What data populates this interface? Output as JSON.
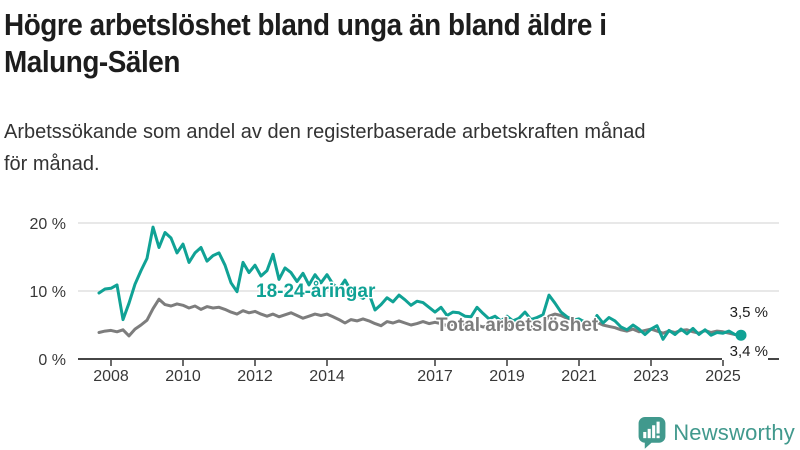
{
  "header": {
    "title": "Högre arbetslöshet bland unga än bland äldre i\nMalung-Sälen",
    "subtitle": "Arbetssökande som andel av den registerbaserade arbetskraften månad\nför månad."
  },
  "chart_data": {
    "type": "line",
    "unit": "%",
    "grid": "horizontal-light",
    "legend_position": "inline-labels",
    "x_start": 2007.6667,
    "x_step": 0.16667,
    "x_ticks": [
      2008,
      2010,
      2012,
      2014,
      2017,
      2019,
      2021,
      2023,
      2025
    ],
    "y_ticks": [
      0,
      10,
      20
    ],
    "y_tick_labels": [
      "0 %",
      "10 %",
      "20 %"
    ],
    "ylim": [
      0,
      21
    ],
    "xlim": [
      2007.5,
      2026.5
    ],
    "series": [
      {
        "name": "Total arbetslöshet",
        "label": "Total arbetslöshet",
        "color": "#7d7d7d",
        "end_label": "3,4 %",
        "end_value": 3.4,
        "end_dot": false,
        "values": [
          3.9,
          4.1,
          4.2,
          4.0,
          4.3,
          3.4,
          4.4,
          5.0,
          5.7,
          7.4,
          8.8,
          8.0,
          7.8,
          8.1,
          7.9,
          7.5,
          7.8,
          7.3,
          7.7,
          7.5,
          7.6,
          7.3,
          6.9,
          6.6,
          7.1,
          6.8,
          7.0,
          6.6,
          6.3,
          6.6,
          6.2,
          6.5,
          6.8,
          6.4,
          6.0,
          6.3,
          6.6,
          6.4,
          6.6,
          6.2,
          5.8,
          5.3,
          5.8,
          5.6,
          5.9,
          5.6,
          5.2,
          4.9,
          5.5,
          5.3,
          5.6,
          5.3,
          5.0,
          5.2,
          5.5,
          5.2,
          5.4,
          5.2,
          4.9,
          5.1,
          5.3,
          5.0,
          5.2,
          5.0,
          4.7,
          4.9,
          5.1,
          4.8,
          5.0,
          4.8,
          4.6,
          4.9,
          4.7,
          4.9,
          5.1,
          6.3,
          6.6,
          6.4,
          6.0,
          5.8,
          5.7,
          5.5,
          5.2,
          5.4,
          5.0,
          4.8,
          4.6,
          4.3,
          4.1,
          4.4,
          4.0,
          4.2,
          4.4,
          4.1,
          3.8,
          4.1,
          3.9,
          4.2,
          4.3,
          4.0,
          3.8,
          4.2,
          3.9,
          4.1,
          4.0,
          3.8,
          3.6,
          3.4
        ]
      },
      {
        "name": "18-24-åringar",
        "label": "18-24-åringar",
        "color": "#10a295",
        "end_label": "3,5 %",
        "end_value": 3.5,
        "end_dot": true,
        "values": [
          9.7,
          10.3,
          10.4,
          10.9,
          5.8,
          8.2,
          11.0,
          13.0,
          14.8,
          19.4,
          16.4,
          18.6,
          17.8,
          15.6,
          16.9,
          14.2,
          15.6,
          16.4,
          14.4,
          15.2,
          15.6,
          13.8,
          11.2,
          9.9,
          14.2,
          12.7,
          13.8,
          12.2,
          13.0,
          15.4,
          11.7,
          13.4,
          12.7,
          11.4,
          12.6,
          10.9,
          12.4,
          11.2,
          12.4,
          11.0,
          10.3,
          11.6,
          10.0,
          9.4,
          8.9,
          9.6,
          7.2,
          8.0,
          9.0,
          8.4,
          9.4,
          8.7,
          7.9,
          8.5,
          8.3,
          7.6,
          6.9,
          7.6,
          6.4,
          6.9,
          6.8,
          6.3,
          6.2,
          7.6,
          6.7,
          5.9,
          6.3,
          5.6,
          6.3,
          5.6,
          6.0,
          6.9,
          5.8,
          6.1,
          6.5,
          9.4,
          8.2,
          6.9,
          6.2,
          5.7,
          5.9,
          5.4,
          5.0,
          6.4,
          5.3,
          6.1,
          5.6,
          4.7,
          4.3,
          5.0,
          4.4,
          3.6,
          4.4,
          4.9,
          2.9,
          4.2,
          3.6,
          4.4,
          3.7,
          4.5,
          3.6,
          4.3,
          3.5,
          3.9,
          3.8,
          4.1,
          3.6,
          3.5
        ]
      }
    ]
  },
  "footer": {
    "brand": "Newsworthy",
    "logo_icon": "newsworthy-speech-bubble-chart-icon"
  }
}
